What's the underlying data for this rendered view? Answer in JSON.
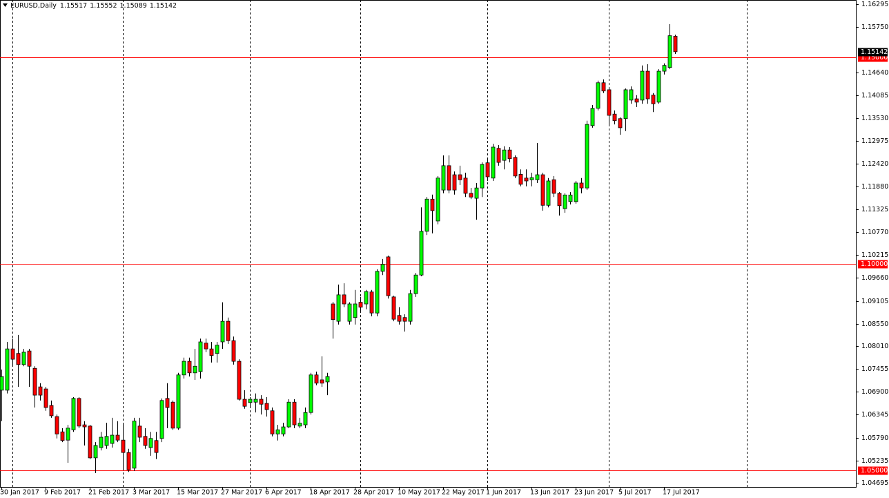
{
  "chart_data": {
    "type": "candlestick",
    "title": "EURUSD,Daily",
    "up_color": "#00ff00",
    "down_color": "#ff0000",
    "hline_color": "#ff0000",
    "ylim": [
      1.04595,
      1.16395
    ],
    "yticks": [
      1.16295,
      {
        "value": 1.1575,
        "label": "1.15750"
      },
      {
        "value": 1.1464,
        "label": "1.14640"
      },
      1.14085,
      {
        "value": 1.1353,
        "label": "1.13530"
      },
      1.12975,
      {
        "value": 1.1242,
        "label": "1.12420"
      },
      {
        "value": 1.1188,
        "label": "1.11880"
      },
      1.11325,
      {
        "value": 1.1077,
        "label": "1.10770"
      },
      1.10215,
      {
        "value": 1.0966,
        "label": "1.09660"
      },
      1.09105,
      {
        "value": 1.0855,
        "label": "1.08550"
      },
      {
        "value": 1.0801,
        "label": "1.08010"
      },
      1.07455,
      {
        "value": 1.069,
        "label": "1.06900"
      },
      1.06345,
      {
        "value": 1.0579,
        "label": "1.05790"
      },
      1.05235,
      1.04695
    ],
    "hlines": [
      {
        "value": 1.15,
        "label": "1.15000"
      },
      {
        "value": 1.1,
        "label": "1.10000"
      },
      {
        "value": 1.05,
        "label": "1.05000"
      }
    ],
    "categories": [
      "30 Jan 2017",
      null,
      null,
      null,
      null,
      null,
      null,
      null,
      "9 Feb 2017",
      null,
      null,
      null,
      null,
      null,
      null,
      null,
      "21 Feb 2017",
      null,
      null,
      null,
      null,
      null,
      null,
      null,
      "3 Mar 2017",
      null,
      null,
      null,
      null,
      null,
      null,
      null,
      "15 Mar 2017",
      null,
      null,
      null,
      null,
      null,
      null,
      null,
      "27 Mar 2017",
      null,
      null,
      null,
      null,
      null,
      null,
      null,
      "6 Apr 2017",
      null,
      null,
      null,
      null,
      null,
      null,
      null,
      "18 Apr 2017",
      null,
      null,
      null,
      null,
      null,
      null,
      null,
      "28 Apr 2017",
      null,
      null,
      null,
      null,
      null,
      null,
      null,
      "10 May 2017",
      null,
      null,
      null,
      null,
      null,
      null,
      null,
      "22 May 2017",
      null,
      null,
      null,
      null,
      null,
      null,
      null,
      "1 Jun 2017",
      null,
      null,
      null,
      null,
      null,
      null,
      null,
      "13 Jun 2017",
      null,
      null,
      null,
      null,
      null,
      null,
      null,
      "23 Jun 2017",
      null,
      null,
      null,
      null,
      null,
      null,
      null,
      "5 Jul 2017",
      null,
      null,
      null,
      null,
      null,
      null,
      null,
      "17 Jul 2017",
      null,
      null
    ],
    "open": [
      1.0694,
      1.0694,
      1.0794,
      1.0783,
      1.0756,
      1.0789,
      1.0747,
      1.0702,
      1.0697,
      1.0657,
      1.063,
      1.0593,
      1.0573,
      1.0598,
      1.0674,
      1.061,
      1.0607,
      1.053,
      1.0555,
      1.056,
      1.0565,
      1.0585,
      1.0573,
      1.0543,
      1.0505,
      1.0607,
      1.0582,
      1.0555,
      1.0572,
      1.0577,
      1.0674,
      1.0665,
      1.0602,
      1.0731,
      1.0764,
      1.0736,
      1.0739,
      1.0808,
      1.0794,
      1.0783,
      1.0811,
      1.0861,
      1.0814,
      1.0764,
      1.0672,
      1.0664,
      1.0665,
      1.0672,
      1.0662,
      1.0644,
      1.0588,
      1.0588,
      1.0605,
      1.0665,
      1.0607,
      1.061,
      1.064,
      1.0731,
      1.0719,
      1.0714,
      1.0903,
      1.0861,
      1.0925,
      1.0861,
      1.087,
      1.0907,
      1.0903,
      1.0932,
      1.0881,
      1.0982,
      1.1017,
      1.092,
      1.0875,
      1.087,
      1.0861,
      1.0928,
      1.0973,
      1.1079,
      1.1157,
      1.1104,
      1.1179,
      1.1238,
      1.1216,
      1.1216,
      1.1208,
      1.1171,
      1.1159,
      1.1184,
      1.1245,
      1.1208,
      1.128,
      1.1251,
      1.1276,
      1.1258,
      1.1217,
      1.1208,
      1.1204,
      1.1204,
      1.1216,
      1.1142,
      1.1204,
      1.1171,
      1.1134,
      1.1151,
      1.1151,
      1.1196,
      1.1184,
      1.1335,
      1.1377,
      1.1439,
      1.1422,
      1.1363,
      1.1352,
      1.1352,
      1.1397,
      1.14,
      1.1397,
      1.1467,
      1.1409,
      1.1392,
      1.1467,
      1.1476,
      1.15517
    ],
    "high": [
      1.0744,
      1.0811,
      1.0819,
      1.0828,
      1.0794,
      1.0794,
      1.0752,
      1.0711,
      1.0702,
      1.0669,
      1.0635,
      1.0602,
      1.061,
      1.0677,
      1.0677,
      1.0619,
      1.061,
      1.0568,
      1.0593,
      1.0615,
      1.0627,
      1.0619,
      1.0615,
      1.0552,
      1.0627,
      1.0627,
      1.0602,
      1.0593,
      1.0593,
      1.0674,
      1.0711,
      1.0669,
      1.0736,
      1.0773,
      1.0773,
      1.0794,
      1.0819,
      1.0819,
      1.0811,
      1.0811,
      1.0907,
      1.087,
      1.0824,
      1.0769,
      1.0694,
      1.0677,
      1.0686,
      1.0682,
      1.0677,
      1.0652,
      1.061,
      1.0615,
      1.0672,
      1.0672,
      1.0627,
      1.0652,
      1.0736,
      1.0739,
      1.0776,
      1.0736,
      1.0908,
      1.095,
      1.0953,
      1.0907,
      1.0937,
      1.092,
      1.0937,
      1.0937,
      1.0987,
      1.1012,
      1.102,
      1.0923,
      1.0895,
      1.0878,
      1.0937,
      1.0978,
      1.1137,
      1.1162,
      1.1168,
      1.1213,
      1.1263,
      1.1263,
      1.1224,
      1.1238,
      1.1221,
      1.1184,
      1.1196,
      1.1246,
      1.1255,
      1.1291,
      1.1288,
      1.1285,
      1.1283,
      1.1263,
      1.1229,
      1.1229,
      1.1221,
      1.1293,
      1.1221,
      1.1208,
      1.1213,
      1.1174,
      1.1171,
      1.1174,
      1.1201,
      1.1208,
      1.1347,
      1.1385,
      1.1444,
      1.1447,
      1.1425,
      1.1372,
      1.1355,
      1.1425,
      1.143,
      1.1409,
      1.1481,
      1.1484,
      1.1414,
      1.1472,
      1.1486,
      1.1581,
      1.15552
    ],
    "low": [
      1.0619,
      1.0686,
      1.0752,
      1.0702,
      1.0752,
      1.0702,
      1.0652,
      1.0669,
      1.0644,
      1.0627,
      1.0577,
      1.0568,
      1.0518,
      1.0593,
      1.0602,
      1.056,
      1.0527,
      1.0493,
      1.0548,
      1.0552,
      1.0555,
      1.0568,
      1.0501,
      1.0496,
      1.0498,
      1.0568,
      1.0552,
      1.0535,
      1.0527,
      1.0568,
      1.0602,
      1.0598,
      1.0598,
      1.0722,
      1.0727,
      1.0719,
      1.0722,
      1.0786,
      1.0761,
      1.0761,
      1.0794,
      1.0806,
      1.0756,
      1.0669,
      1.0649,
      1.0652,
      1.064,
      1.0635,
      1.063,
      1.0582,
      1.0572,
      1.0582,
      1.0602,
      1.0602,
      1.0602,
      1.0602,
      1.0635,
      1.0706,
      1.0702,
      1.0682,
      1.0819,
      1.0853,
      1.0895,
      1.0853,
      1.0853,
      1.0886,
      1.089,
      1.0873,
      1.0873,
      1.0973,
      1.0916,
      1.0861,
      1.0853,
      1.0836,
      1.0853,
      1.092,
      1.097,
      1.107,
      1.1074,
      1.1096,
      1.1171,
      1.1171,
      1.1168,
      1.1191,
      1.1162,
      1.1157,
      1.1107,
      1.1162,
      1.1201,
      1.1201,
      1.1238,
      1.1229,
      1.1246,
      1.1208,
      1.1188,
      1.1188,
      1.1188,
      1.1196,
      1.1129,
      1.1137,
      1.1162,
      1.1117,
      1.1124,
      1.1144,
      1.1146,
      1.1171,
      1.1179,
      1.133,
      1.1372,
      1.1414,
      1.1335,
      1.1338,
      1.1313,
      1.1322,
      1.1388,
      1.138,
      1.1388,
      1.1388,
      1.1368,
      1.1388,
      1.1459,
      1.1472,
      1.15089
    ],
    "close": [
      1.0727,
      1.0794,
      1.0769,
      1.0756,
      1.0786,
      1.0752,
      1.0682,
      1.0682,
      1.0652,
      1.0632,
      1.0588,
      1.0572,
      1.0602,
      1.0674,
      1.0607,
      1.0605,
      1.053,
      1.056,
      1.058,
      1.0582,
      1.0585,
      1.0573,
      1.0543,
      1.0501,
      1.0619,
      1.058,
      1.056,
      1.0577,
      1.0543,
      1.0669,
      1.0652,
      1.0602,
      1.0731,
      1.0764,
      1.0736,
      1.0752,
      1.0811,
      1.0794,
      1.0778,
      1.0803,
      1.0861,
      1.0814,
      1.0764,
      1.0672,
      1.0655,
      1.0672,
      1.0672,
      1.066,
      1.0647,
      1.0588,
      1.0598,
      1.0605,
      1.0665,
      1.061,
      1.0614,
      1.064,
      1.0731,
      1.0711,
      1.0711,
      1.0727,
      1.0865,
      1.0925,
      1.0903,
      1.0903,
      1.0903,
      1.0895,
      1.0933,
      1.0881,
      1.0982,
      1.0999,
      1.0923,
      1.0866,
      1.0861,
      1.0861,
      1.0928,
      1.0973,
      1.1079,
      1.1157,
      1.1129,
      1.1208,
      1.1238,
      1.1179,
      1.1179,
      1.1204,
      1.1171,
      1.1162,
      1.1184,
      1.1241,
      1.1211,
      1.1283,
      1.1246,
      1.1276,
      1.1255,
      1.1213,
      1.1193,
      1.1201,
      1.1209,
      1.1216,
      1.1142,
      1.1201,
      1.1171,
      1.1141,
      1.1167,
      1.1167,
      1.1196,
      1.1184,
      1.1338,
      1.1377,
      1.1439,
      1.1419,
      1.136,
      1.1347,
      1.133,
      1.1422,
      1.1422,
      1.1392,
      1.1467,
      1.14,
      1.1388,
      1.1467,
      1.1481,
      1.1553,
      1.15142
    ]
  }
}
